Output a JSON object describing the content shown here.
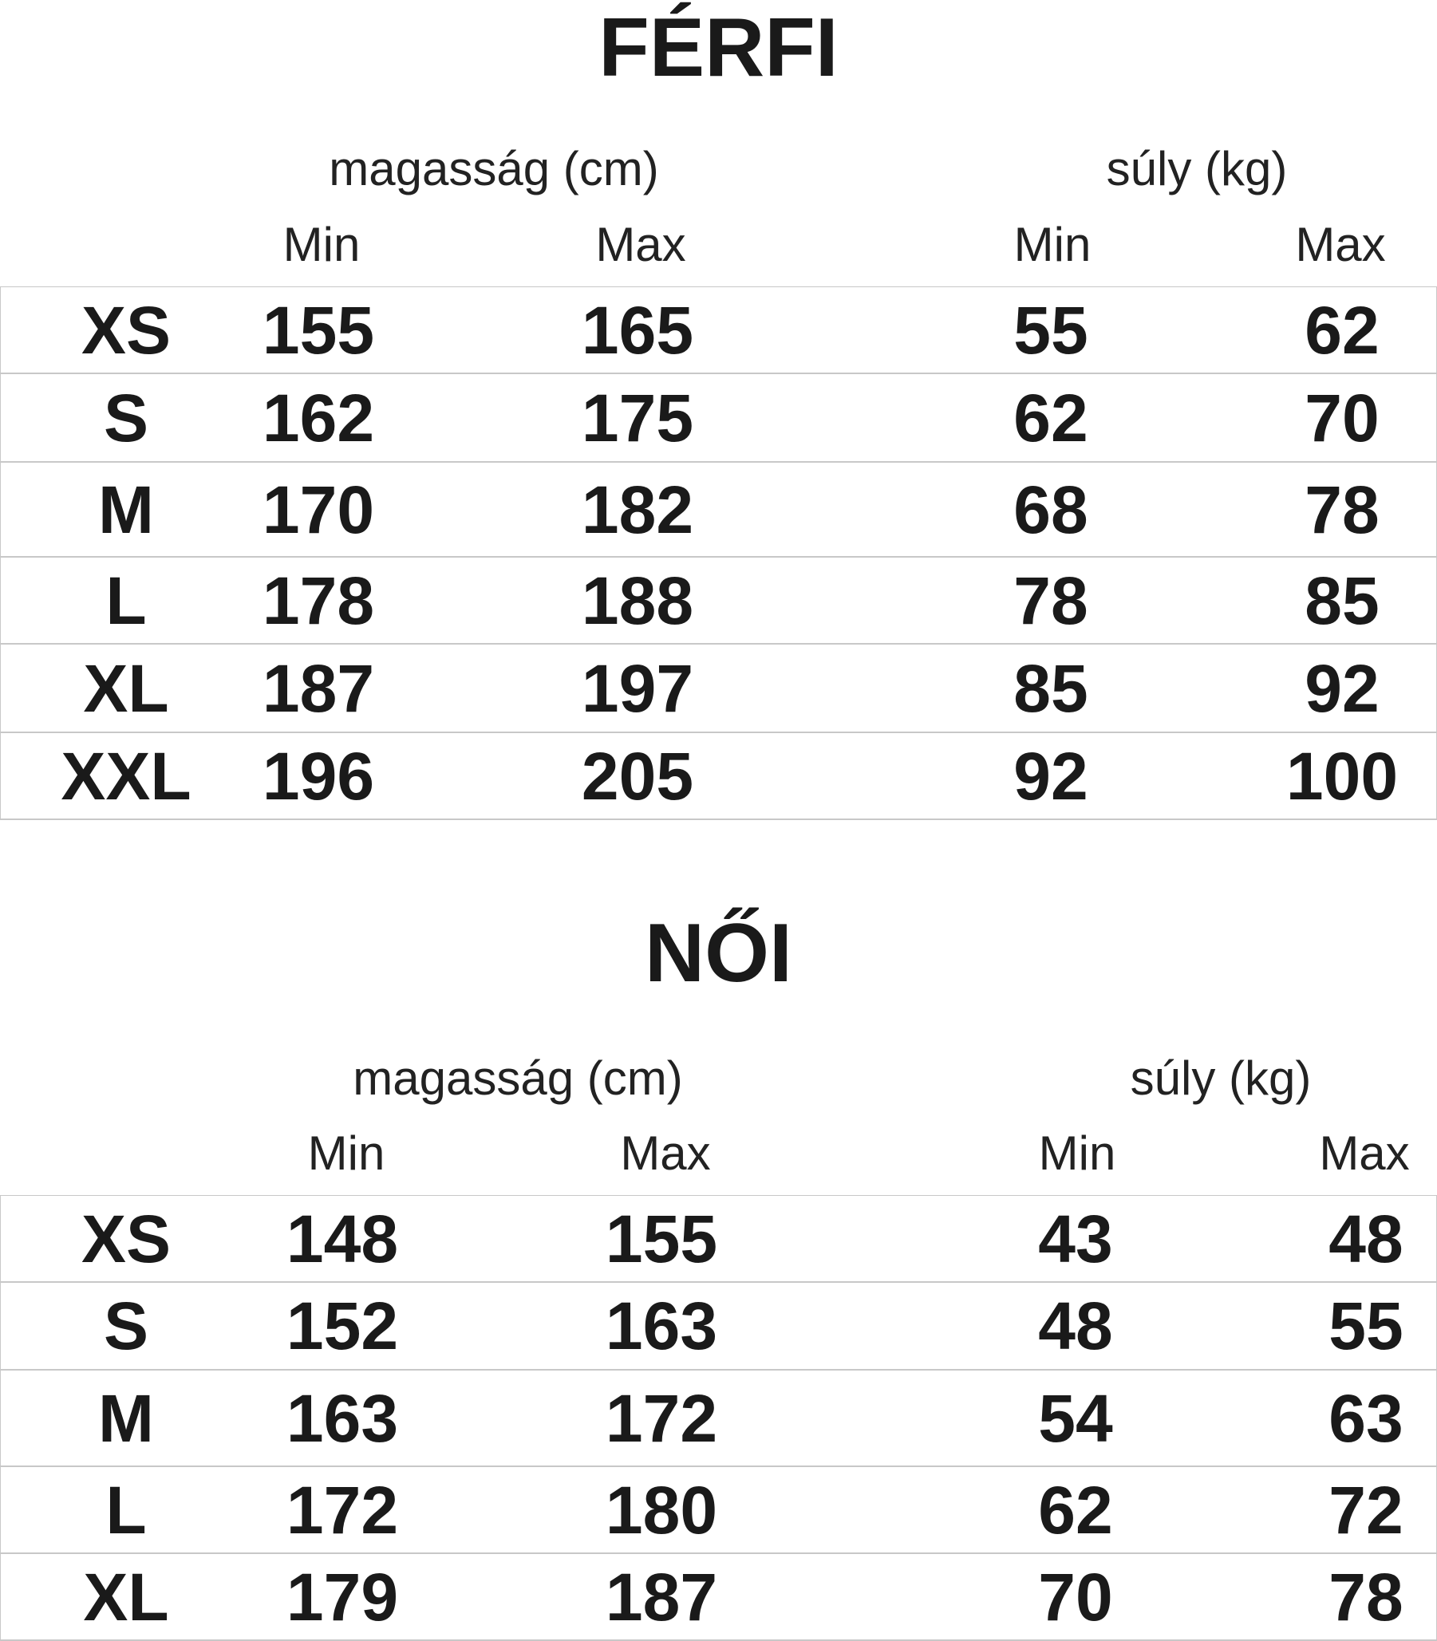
{
  "sections": [
    {
      "title": "FÉRFI",
      "height_group": "magasság (cm)",
      "weight_group": "súly (kg)",
      "columns": [
        "Min",
        "Max",
        "Min",
        "Max"
      ],
      "rows": [
        [
          "XS",
          "155",
          "165",
          "55",
          "62"
        ],
        [
          "S",
          "162",
          "175",
          "62",
          "70"
        ],
        [
          "M",
          "170",
          "182",
          "68",
          "78"
        ],
        [
          "L",
          "178",
          "188",
          "78",
          "85"
        ],
        [
          "XL",
          "187",
          "197",
          "85",
          "92"
        ],
        [
          "XXL",
          "196",
          "205",
          "92",
          "100"
        ]
      ]
    },
    {
      "title": "NŐI",
      "height_group": "magasság (cm)",
      "weight_group": "súly (kg)",
      "columns": [
        "Min",
        "Max",
        "Min",
        "Max"
      ],
      "rows": [
        [
          "XS",
          "148",
          "155",
          "43",
          "48"
        ],
        [
          "S",
          "152",
          "163",
          "48",
          "55"
        ],
        [
          "M",
          "163",
          "172",
          "54",
          "63"
        ],
        [
          "L",
          "172",
          "180",
          "62",
          "72"
        ],
        [
          "XL",
          "179",
          "187",
          "70",
          "78"
        ]
      ]
    }
  ]
}
